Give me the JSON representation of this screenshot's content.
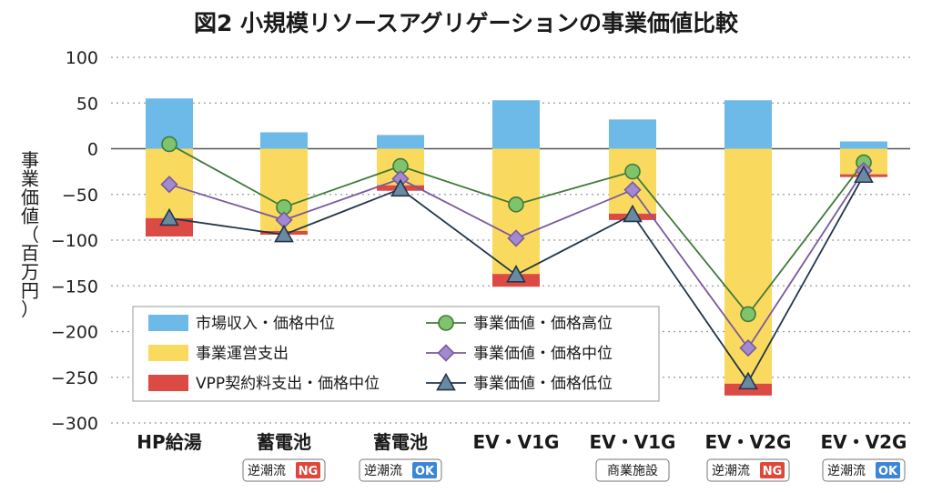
{
  "chart_data": {
    "type": "bar",
    "title": "図2 小規模リソースアグリゲーションの事業価値比較",
    "ylabel": "事業価値（百万円）",
    "ylim": [
      -300,
      100
    ],
    "yticks": [
      100,
      50,
      0,
      -50,
      -100,
      -150,
      -200,
      -250,
      -300
    ],
    "ytick_labels": [
      "100",
      "50",
      "0",
      "−50",
      "−100",
      "−150",
      "−200",
      "−250",
      "−300"
    ],
    "grid": "horizontal dotted",
    "legend_position": "lower-center",
    "categories": [
      {
        "name": "HP給湯",
        "badge": null
      },
      {
        "name": "蓄電池",
        "badge": {
          "text": "逆潮流",
          "tag": "NG",
          "tag_color": "#e0463b"
        }
      },
      {
        "name": "蓄電池",
        "badge": {
          "text": "逆潮流",
          "tag": "OK",
          "tag_color": "#3c86d6"
        }
      },
      {
        "name": "EV・V1G",
        "badge": null
      },
      {
        "name": "EV・V1G",
        "badge": {
          "text": "商業施設",
          "tag": null
        }
      },
      {
        "name": "EV・V2G",
        "badge": {
          "text": "逆潮流",
          "tag": "NG",
          "tag_color": "#e0463b"
        }
      },
      {
        "name": "EV・V2G",
        "badge": {
          "text": "逆潮流",
          "tag": "OK",
          "tag_color": "#3c86d6"
        }
      }
    ],
    "bar_series": [
      {
        "name": "市場収入・価格中位",
        "color": "#6db9e8",
        "values": [
          55,
          18,
          15,
          53,
          32,
          53,
          8
        ]
      },
      {
        "name": "事業運営支出",
        "color": "#fada5e",
        "values": [
          -76,
          -90,
          -40,
          -137,
          -71,
          -257,
          -28
        ]
      },
      {
        "name": "VPP契約料支出・価格中位",
        "color": "#dc4a44",
        "values": [
          -20,
          -4,
          -6,
          -14,
          -7,
          -13,
          -3
        ]
      }
    ],
    "line_series": [
      {
        "name": "事業価値・価格高位",
        "marker": "circle",
        "line_color": "#3f7a3a",
        "fill": "#7fc46c",
        "values": [
          5,
          -64,
          -19,
          -61,
          -25,
          -181,
          -15
        ]
      },
      {
        "name": "事業価値・価格中位",
        "marker": "diamond",
        "line_color": "#7a5a9c",
        "fill": "#a28ad0",
        "values": [
          -39,
          -78,
          -33,
          -98,
          -45,
          -218,
          -24
        ]
      },
      {
        "name": "事業価値・価格低位",
        "marker": "triangle",
        "line_color": "#22364a",
        "fill": "#6a8aa3",
        "values": [
          -76,
          -94,
          -44,
          -138,
          -72,
          -255,
          -29
        ]
      }
    ]
  }
}
